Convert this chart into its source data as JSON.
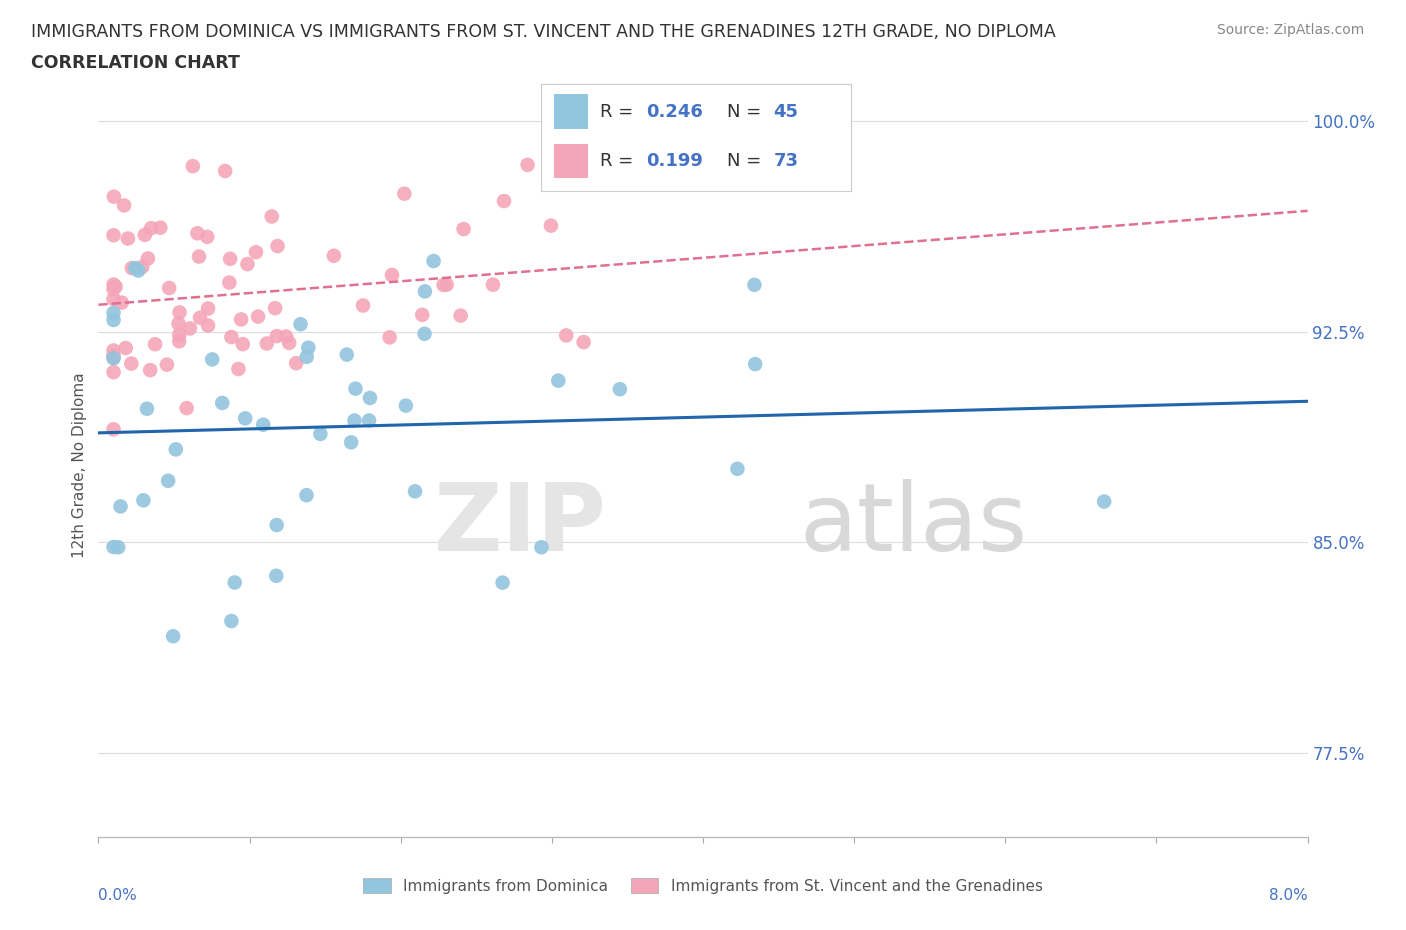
{
  "title_line1": "IMMIGRANTS FROM DOMINICA VS IMMIGRANTS FROM ST. VINCENT AND THE GRENADINES 12TH GRADE, NO DIPLOMA",
  "title_line2": "CORRELATION CHART",
  "source": "Source: ZipAtlas.com",
  "ylabel_label": "12th Grade, No Diploma",
  "blue_color": "#92c5de",
  "pink_color": "#f4a6b8",
  "blue_line_color": "#2166ac",
  "pink_line_color": "#e07090",
  "axis_label_color": "#4472c4",
  "xlim": [
    0.0,
    0.08
  ],
  "ylim": [
    0.745,
    1.01
  ],
  "yticks": [
    0.775,
    0.85,
    0.925,
    1.0
  ],
  "ytick_labels": [
    "77.5%",
    "85.0%",
    "92.5%",
    "100.0%"
  ],
  "blue_R": 0.246,
  "blue_N": 45,
  "pink_R": 0.199,
  "pink_N": 73
}
